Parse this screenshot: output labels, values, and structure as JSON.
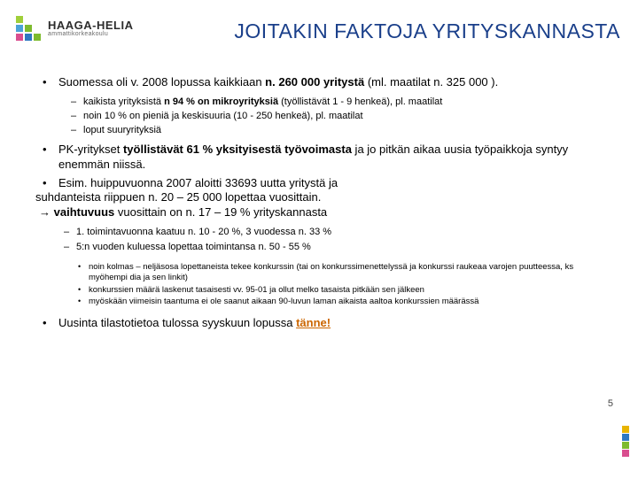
{
  "colors": {
    "title": "#1a3f8a",
    "logo_squares": [
      "#a0cf3a",
      "#ffffff",
      "#ffffff",
      "#4aa3d8",
      "#7dbb2e",
      "#ffffff",
      "#d94e8f",
      "#2e78c2",
      "#7dbb2e"
    ],
    "side_squares": [
      "#e8b400",
      "#2e78c2",
      "#7dbb2e",
      "#d94e8f"
    ],
    "link": "#cc6600"
  },
  "logo": {
    "name": "HAAGA-HELIA",
    "sub": "ammattikorkeakoulu"
  },
  "title": "JOITAKIN  FAKTOJA YRITYSKANNASTA",
  "b1": {
    "lead": "Suomessa oli v. 2008 lopussa kaikkiaan ",
    "hl1": "n. 260 000 yritystä",
    "tail": " (ml. maatilat n. 325 000 ).",
    "sub": {
      "a_lead": "kaikista yrityksistä ",
      "a_hl": "n 94 %  on mikroyrityksiä",
      "a_tail": " (työllistävät 1 - 9 henkeä), pl. maatilat",
      "b": "noin 10 % on pieniä ja keskisuuria (10 - 250 henkeä), pl. maatilat",
      "c": "loput suuryrityksiä"
    }
  },
  "b2": {
    "lead": "PK-yritykset ",
    "hl": "työllistävät  61 % yksityisestä työvoimasta",
    "tail": " ja jo pitkän aikaa uusia työpaikkoja syntyy enemmän niissä."
  },
  "b3": {
    "l1": "Esim. huippuvuonna 2007 aloitti 33693 uutta yritystä ja",
    "l2": "suhdanteista riippuen n. 20 – 25 000 lopettaa vuosittain.",
    "arrow_lead": "→   ",
    "arrow_hl": "vaihtuvuus",
    "arrow_tail": " vuosittain on  n. 17 – 19 % yrityskannasta",
    "d1": "1. toimintavuonna kaatuu n. 10 - 20 %, 3 vuodessa n. 33 %",
    "d2": "5:n vuoden kuluessa lopettaa toimintansa n. 50 - 55 %",
    "sub3": {
      "a": "noin kolmas – neljäsosa lopettaneista tekee konkurssin (tai on konkurssimenettelyssä ja konkurssi raukeaa varojen puutteessa, ks myöhempi dia ja sen linkit)",
      "b": "konkurssien määrä laskenut tasaisesti vv. 95-01 ja ollut melko tasaista pitkään sen jälkeen",
      "c": "myöskään viimeisin taantuma ei ole saanut aikaan 90-luvun laman aikaista aaltoa konkurssien määrässä"
    }
  },
  "footer": {
    "lead": "Uusinta tilastotietoa tulossa syyskuun lopussa ",
    "link": "tänne!"
  },
  "pagenum": "5"
}
